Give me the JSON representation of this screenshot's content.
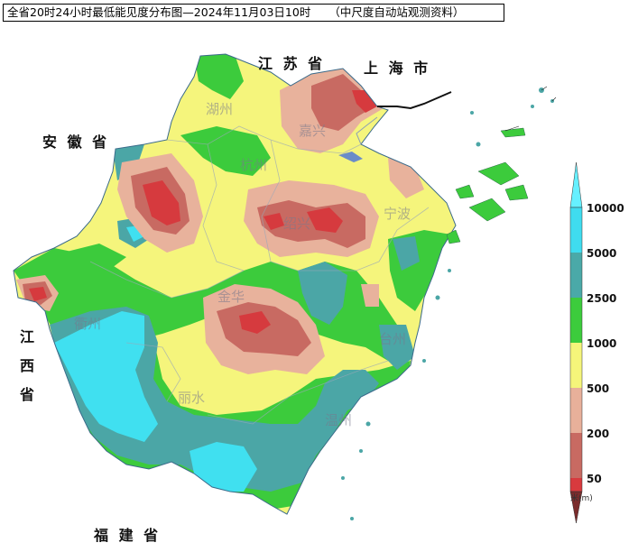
{
  "title": {
    "main": "全省20时24小时最低能见度分布图—2024年11月03日10时",
    "source": "（中尺度自动站观测资料）"
  },
  "provinces": {
    "jiangsu": "江 苏 省",
    "shanghai": "上 海 市",
    "anhui": "安 徽 省",
    "jiangxi_1": "江",
    "jiangxi_2": "西",
    "jiangxi_3": "省",
    "fujian": "福 建 省"
  },
  "cities": {
    "huzhou": "湖州",
    "jiaxing": "嘉兴",
    "hangzhou": "杭州",
    "shaoxing": "绍兴",
    "ningbo": "宁波",
    "jinhua": "金华",
    "quzhou": "衢州",
    "taizhou": "台州",
    "lishui": "丽水",
    "wenzhou": "温州"
  },
  "legend": {
    "unit": "米(m)",
    "levels": [
      {
        "label": "10000",
        "color": "#3fdcef"
      },
      {
        "label": "5000",
        "color": "#4aa9a8"
      },
      {
        "label": "2500",
        "color": "#3ccc3c"
      },
      {
        "label": "1000",
        "color": "#f5f57a"
      },
      {
        "label": "500",
        "color": "#e8b09a"
      },
      {
        "label": "200",
        "color": "#c86a62"
      },
      {
        "label": "50",
        "color": "#d83a3e"
      }
    ],
    "top_color": "#66f0ff",
    "bottom_color": "#7a2c2c"
  },
  "colors": {
    "v10000": "#40e0f0",
    "v5000": "#4ba6a6",
    "v2500": "#3ccb3c",
    "v1000": "#f5f57c",
    "v500": "#e8b29c",
    "v200": "#c86a62",
    "v50": "#d63a3e"
  }
}
